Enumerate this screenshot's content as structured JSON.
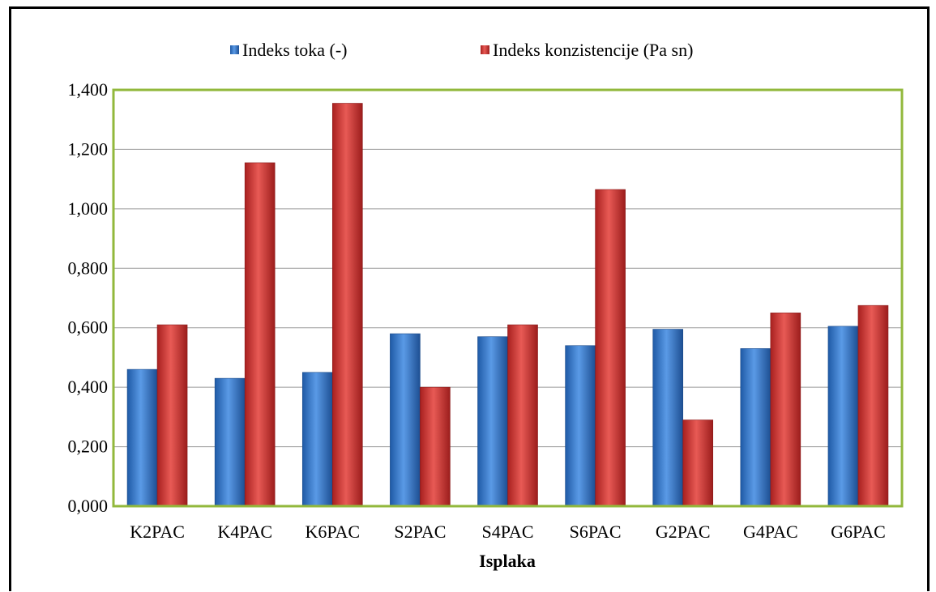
{
  "chart_data": {
    "type": "bar",
    "title": "",
    "xlabel": "Isplaka",
    "ylabel": "",
    "ylim": [
      0,
      1.4
    ],
    "yticks": [
      0,
      0.2,
      0.4,
      0.6,
      0.8,
      1.0,
      1.2,
      1.4
    ],
    "ytick_labels": [
      "0,000",
      "0,200",
      "0,400",
      "0,600",
      "0,800",
      "1,000",
      "1,200",
      "1,400"
    ],
    "categories": [
      "K2PAC",
      "K4PAC",
      "K6PAC",
      "S2PAC",
      "S4PAC",
      "S6PAC",
      "G2PAC",
      "G4PAC",
      "G6PAC"
    ],
    "series": [
      {
        "name": "Indeks toka (-)",
        "color": "#3b7fd4",
        "values": [
          0.46,
          0.43,
          0.45,
          0.58,
          0.57,
          0.54,
          0.595,
          0.53,
          0.605
        ]
      },
      {
        "name": "Indeks konzistencije (Pa sn)",
        "color": "#d63c3c",
        "values": [
          0.61,
          1.155,
          1.355,
          0.4,
          0.61,
          1.065,
          0.29,
          0.65,
          0.675
        ]
      }
    ],
    "grid": true,
    "legend_position": "top"
  }
}
